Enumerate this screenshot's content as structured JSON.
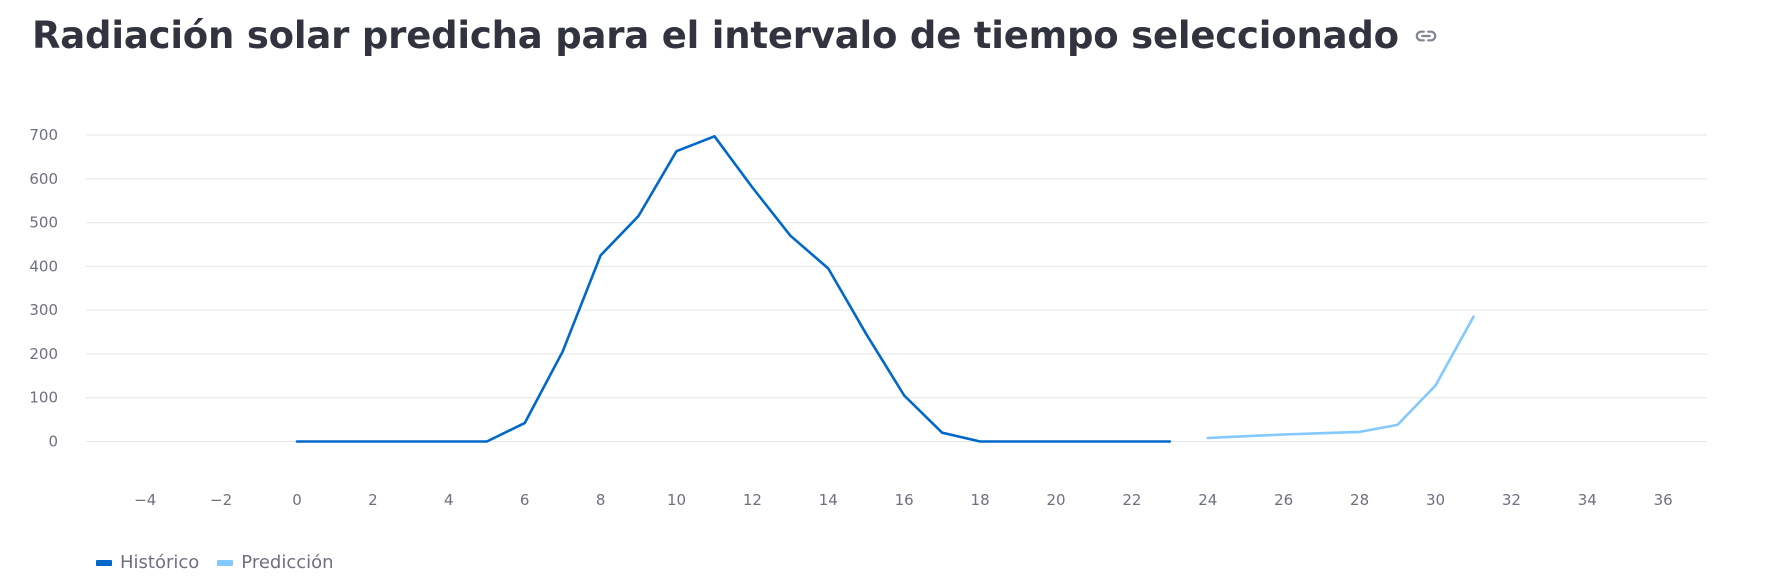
{
  "header": {
    "title": "Radiación solar predicha para el intervalo de tiempo seleccionado",
    "link_icon": "link-icon"
  },
  "colors": {
    "historico": "#0068c9",
    "prediccion": "#83c9ff",
    "grid": "#e6e6ea",
    "tick": "#6e7080"
  },
  "chart_data": {
    "type": "line",
    "title": "Radiación solar predicha para el intervalo de tiempo seleccionado",
    "xlabel": "",
    "ylabel": "",
    "xlim": [
      -5,
      37
    ],
    "ylim": [
      -40,
      705
    ],
    "x_ticks": [
      -4,
      -2,
      0,
      2,
      4,
      6,
      8,
      10,
      12,
      14,
      16,
      18,
      20,
      22,
      24,
      26,
      28,
      30,
      32,
      34,
      36
    ],
    "x_tick_labels": [
      "−4",
      "−2",
      "0",
      "2",
      "4",
      "6",
      "8",
      "10",
      "12",
      "14",
      "16",
      "18",
      "20",
      "22",
      "24",
      "26",
      "28",
      "30",
      "32",
      "34",
      "36"
    ],
    "y_ticks": [
      0,
      100,
      200,
      300,
      400,
      500,
      600,
      700
    ],
    "y_tick_labels": [
      "0",
      "100",
      "200",
      "300",
      "400",
      "500",
      "600",
      "700"
    ],
    "grid": true,
    "legend_position": "bottom-left",
    "series": [
      {
        "name": "Histórico",
        "color": "#0068c9",
        "x": [
          0,
          1,
          2,
          3,
          4,
          5,
          6,
          7,
          8,
          9,
          10,
          11,
          12,
          13,
          14,
          15,
          16,
          17,
          18,
          19,
          20,
          21,
          22,
          23
        ],
        "y": [
          0,
          0,
          0,
          0,
          0,
          0,
          42,
          205,
          425,
          515,
          663,
          697,
          580,
          470,
          395,
          245,
          105,
          20,
          0,
          0,
          0,
          0,
          0,
          0
        ]
      },
      {
        "name": "Predicción",
        "color": "#83c9ff",
        "x": [
          24,
          25,
          26,
          27,
          28,
          29,
          30,
          31
        ],
        "y": [
          8,
          12,
          16,
          19,
          22,
          38,
          128,
          285
        ]
      }
    ]
  }
}
